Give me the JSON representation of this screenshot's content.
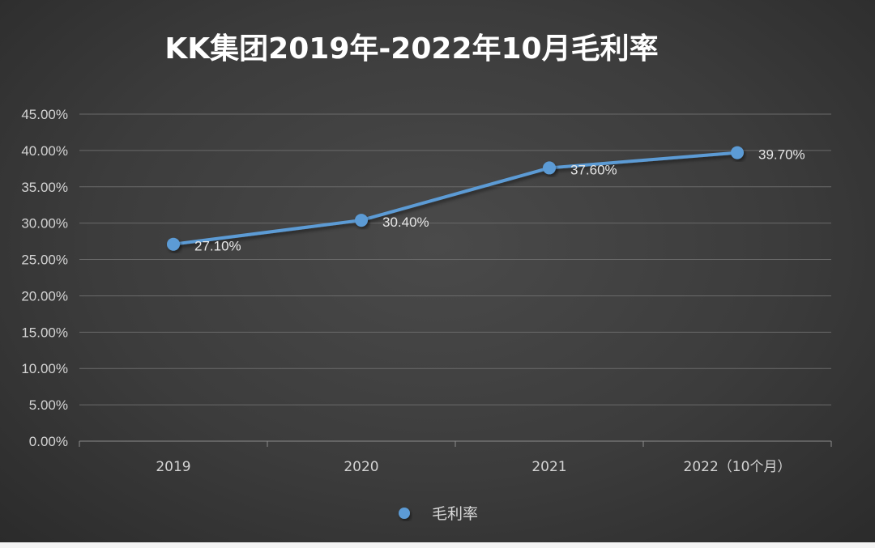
{
  "chart_data": {
    "type": "line",
    "title": "KK集团2019年-2022年10月毛利率",
    "categories": [
      "2019",
      "2020",
      "2021",
      "2022（10个月）"
    ],
    "series": [
      {
        "name": "毛利率",
        "values": [
          27.1,
          30.4,
          37.6,
          39.7
        ],
        "data_labels": [
          "27.10%",
          "30.40%",
          "37.60%",
          "39.70%"
        ],
        "color": "#5b9bd5"
      }
    ],
    "y_ticks": [
      "0.00%",
      "5.00%",
      "10.00%",
      "15.00%",
      "20.00%",
      "25.00%",
      "30.00%",
      "35.00%",
      "40.00%",
      "45.00%"
    ],
    "ylim": [
      0,
      45
    ],
    "grid": true,
    "legend_position": "bottom",
    "background": "#3c3c3c"
  }
}
